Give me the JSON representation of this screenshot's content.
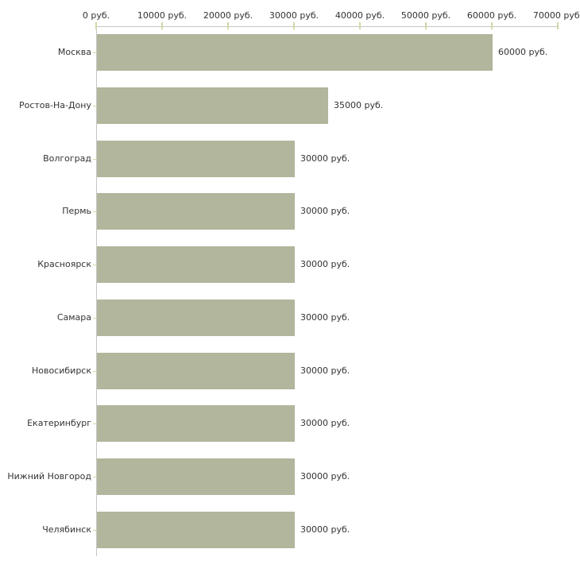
{
  "chart_data": {
    "type": "bar",
    "orientation": "horizontal",
    "title": "",
    "xlabel": "",
    "ylabel": "",
    "unit": "руб.",
    "categories": [
      "Москва",
      "Ростов-На-Дону",
      "Волгоград",
      "Пермь",
      "Красноярск",
      "Самара",
      "Новосибирск",
      "Екатеринбург",
      "Нижний Новгород",
      "Челябинск"
    ],
    "values": [
      60000,
      35000,
      30000,
      30000,
      30000,
      30000,
      30000,
      30000,
      30000,
      30000
    ],
    "value_labels": [
      "60000 руб.",
      "35000 руб.",
      "30000 руб.",
      "30000 руб.",
      "30000 руб.",
      "30000 руб.",
      "30000 руб.",
      "30000 руб.",
      "30000 руб.",
      "30000 руб."
    ],
    "x_tick_values": [
      0,
      10000,
      20000,
      30000,
      40000,
      50000,
      60000,
      70000
    ],
    "x_tick_labels": [
      "0 руб.",
      "10000 руб.",
      "20000 руб.",
      "30000 руб.",
      "40000 руб.",
      "50000 руб.",
      "60000 руб.",
      "70000 руб."
    ],
    "xlim": [
      0,
      70000
    ],
    "grid": false,
    "legend": false,
    "colors": {
      "bar": "#b1b69c",
      "axis": "#c6c6c6",
      "tick": "#d4d6aa",
      "text": "#333333",
      "background": "#ffffff"
    }
  }
}
